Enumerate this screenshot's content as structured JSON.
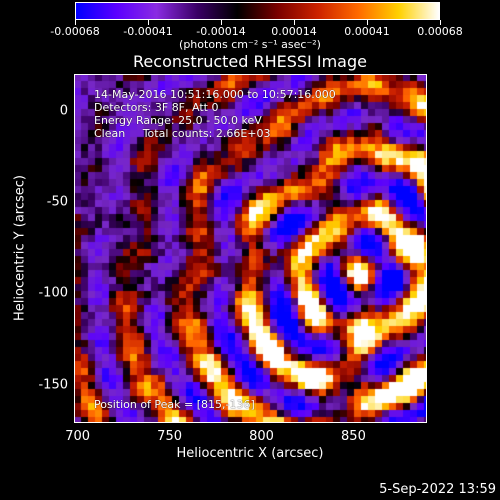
{
  "colorbar": {
    "tick_labels": [
      "-0.00068",
      "-0.00041",
      "-0.00014",
      "0.00014",
      "0.00041",
      "0.00068"
    ],
    "units": "(photons cm⁻² s⁻¹ asec⁻²)",
    "colors": [
      "#0000ff",
      "#5a00ff",
      "#8a2be2",
      "#3a0066",
      "#000000",
      "#7a0000",
      "#cc2200",
      "#ff6a00",
      "#ffd000",
      "#ffffff"
    ]
  },
  "title": "Reconstructed RHESSI Image",
  "info": {
    "line1": "14-May-2016 10:51:16.000 to 10:57:16.000",
    "line2": "Detectors: 3F 8F, Att 0",
    "line3": "Energy Range: 25.0 - 50.0 keV",
    "line4": "Clean     Total counts: 2.66E+03",
    "peak": "Position of Peak = [815,-136]"
  },
  "axes": {
    "x_label": "Heliocentric X (arcsec)",
    "y_label": "Heliocentric Y (arcsec)",
    "x_ticks": [
      "700",
      "750",
      "800",
      "850"
    ],
    "y_ticks": [
      "0",
      "-50",
      "-100",
      "-150"
    ],
    "x_range": [
      698,
      890
    ],
    "y_range": [
      -171,
      20
    ]
  },
  "timestamp": "5-Sep-2022 13:59"
}
